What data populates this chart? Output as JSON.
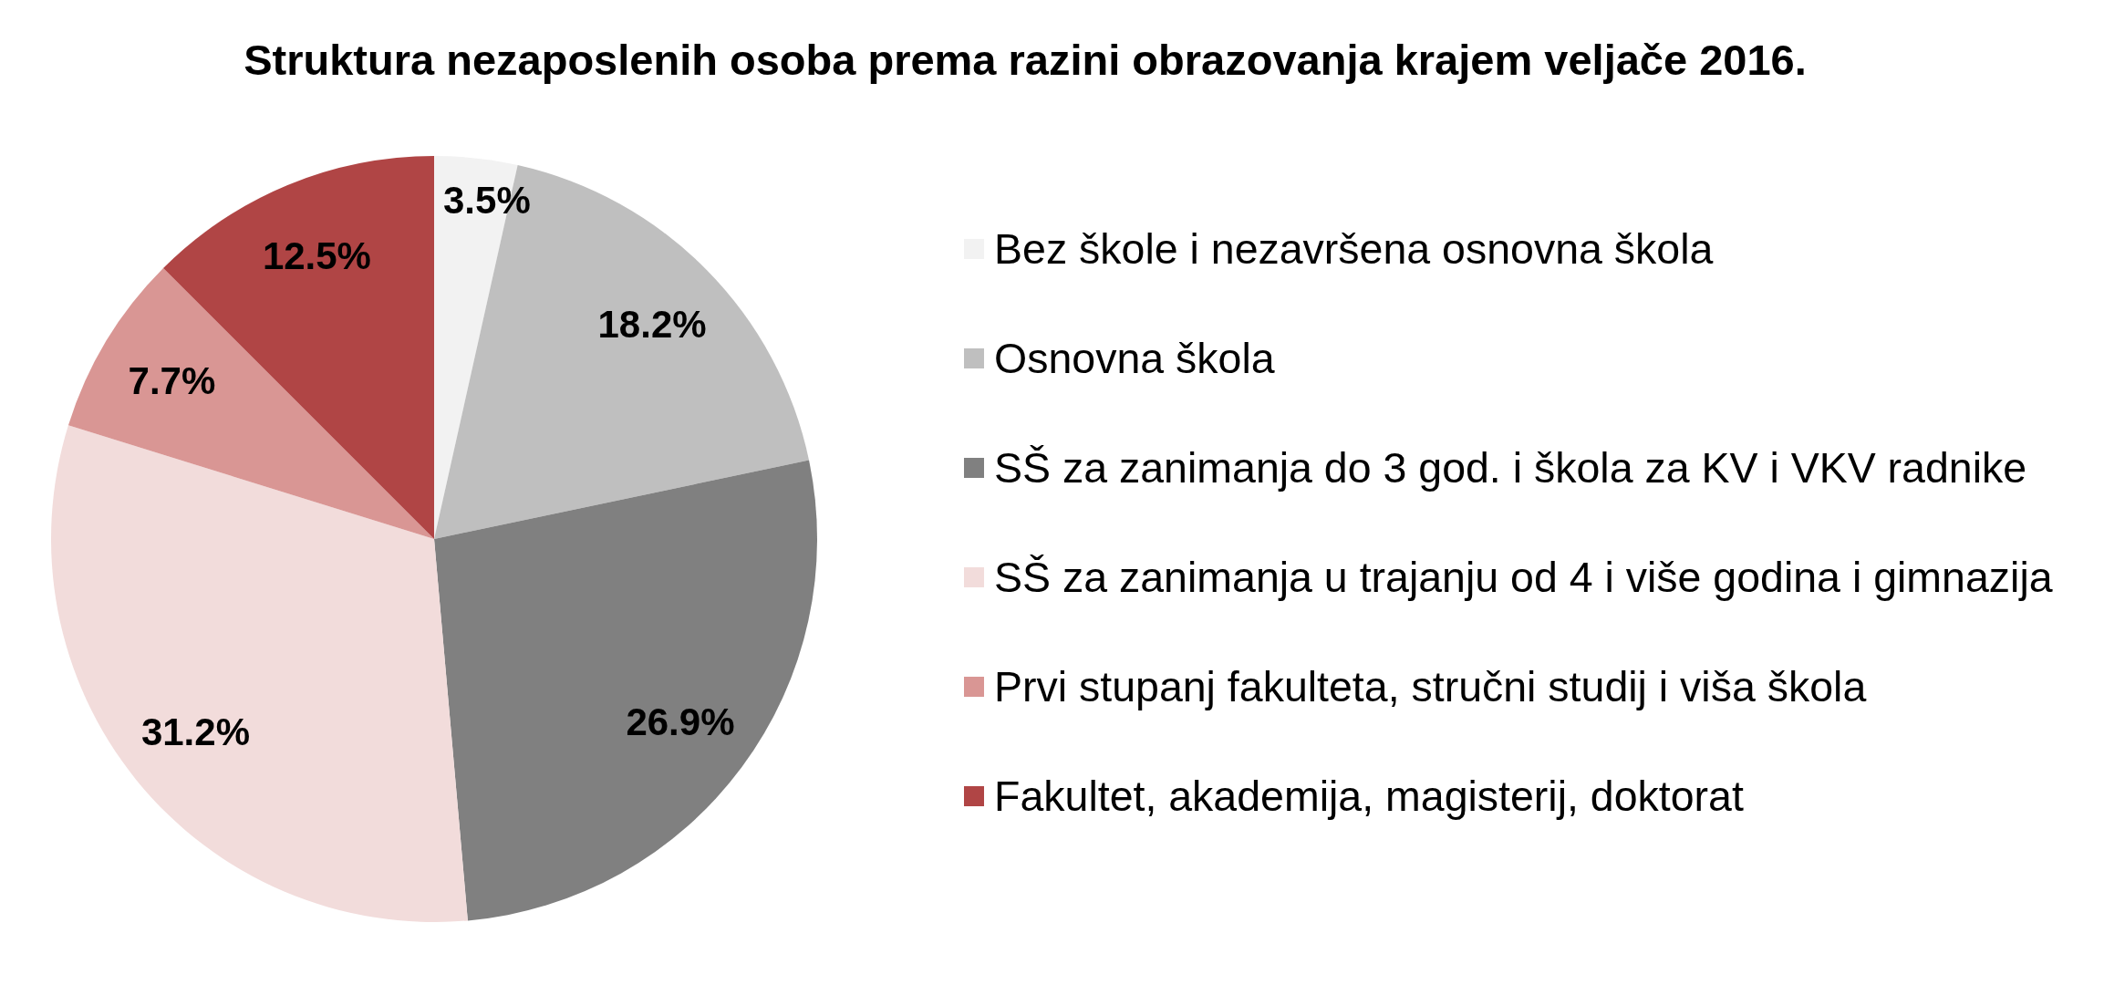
{
  "chart_data": {
    "type": "pie",
    "title": "Struktura nezaposlenih osoba prema razini obrazovanja krajem veljače 2016.",
    "categories": [
      "Bez škole i nezavršena osnovna škola",
      "Osnovna škola",
      "SŠ za zanimanja do 3 god. i škola za KV i VKV radnike",
      "SŠ za zanimanja u trajanju od 4 i više godina i gimnazija",
      "Prvi stupanj fakulteta, stručni studij i viša škola",
      "Fakultet, akademija, magisterij, doktorat"
    ],
    "values": [
      3.5,
      18.2,
      26.9,
      31.2,
      7.7,
      12.5
    ],
    "value_labels": [
      "3.5%",
      "18.2%",
      "26.9%",
      "31.2%",
      "7.7%",
      "12.5%"
    ],
    "colors": [
      "#f2f2f2",
      "#bfbfbf",
      "#808080",
      "#f2dcdb",
      "#d99694",
      "#b04545"
    ],
    "legend": "right"
  }
}
